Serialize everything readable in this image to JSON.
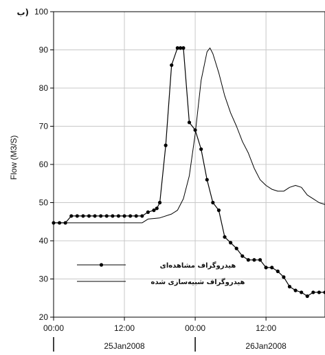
{
  "chart_data": {
    "type": "line",
    "panel_label": "ب)",
    "ylabel": "Flow (M3/S)",
    "xlabel": "",
    "ylim": [
      20,
      100
    ],
    "yticks": [
      20,
      30,
      40,
      50,
      60,
      70,
      80,
      90,
      100
    ],
    "xlim": [
      0,
      46
    ],
    "xticks": [
      {
        "value": 0,
        "label": "00:00"
      },
      {
        "value": 12,
        "label": "12:00"
      },
      {
        "value": 24,
        "label": "00:00"
      },
      {
        "value": 36,
        "label": "12:00"
      }
    ],
    "day_labels": [
      {
        "value": 12,
        "label": "25Jan2008"
      },
      {
        "value": 36,
        "label": "26Jan2008"
      }
    ],
    "day_separators": [
      0,
      24
    ],
    "grid": true,
    "legend_position": "bottom-left",
    "series": [
      {
        "name": "هیدروگراف مشاهده‌ای",
        "marker": "circle",
        "x": [
          0,
          1,
          2,
          3,
          4,
          5,
          6,
          7,
          8,
          9,
          10,
          11,
          12,
          13,
          14,
          15,
          16,
          17,
          17.5,
          18,
          19,
          20,
          21,
          21.5,
          22,
          23,
          24,
          25,
          26,
          27,
          28,
          29,
          30,
          31,
          32,
          33,
          34,
          35,
          36,
          37,
          38,
          39,
          40,
          41,
          42,
          43,
          44,
          45,
          46
        ],
        "values": [
          44.7,
          44.7,
          44.7,
          46.5,
          46.5,
          46.5,
          46.5,
          46.5,
          46.5,
          46.5,
          46.5,
          46.5,
          46.5,
          46.5,
          46.5,
          46.5,
          47.5,
          48.0,
          48.5,
          50.0,
          65.0,
          86.0,
          90.5,
          90.5,
          90.5,
          71.0,
          69.0,
          64.0,
          56.0,
          50.0,
          48.0,
          41.0,
          39.5,
          38.0,
          36.0,
          35.0,
          35.0,
          35.0,
          33.0,
          33.0,
          32.0,
          30.5,
          28.0,
          27.0,
          26.5,
          25.5,
          26.5,
          26.5,
          26.5
        ]
      },
      {
        "name": "هیدروگراف شبیه‌سازی شده",
        "marker": "none",
        "x": [
          0,
          2,
          4,
          6,
          8,
          10,
          12,
          14,
          15,
          16,
          18,
          20,
          21,
          22,
          23,
          24,
          25,
          26,
          26.5,
          27,
          28,
          29,
          30,
          31,
          32,
          33,
          34,
          35,
          36,
          37,
          38,
          39,
          40,
          41,
          42,
          43,
          44,
          45,
          46
        ],
        "values": [
          44.7,
          44.7,
          44.7,
          44.7,
          44.7,
          44.7,
          44.7,
          44.7,
          44.7,
          45.7,
          46.0,
          47.0,
          48.0,
          51.0,
          57.0,
          68.0,
          82.0,
          89.5,
          90.5,
          89.0,
          84.0,
          78.0,
          73.5,
          70.0,
          66.0,
          63.0,
          59.0,
          56.0,
          54.5,
          53.5,
          53.0,
          53.0,
          54.0,
          54.5,
          54.0,
          52.0,
          51.0,
          50.0,
          49.5
        ]
      }
    ]
  }
}
